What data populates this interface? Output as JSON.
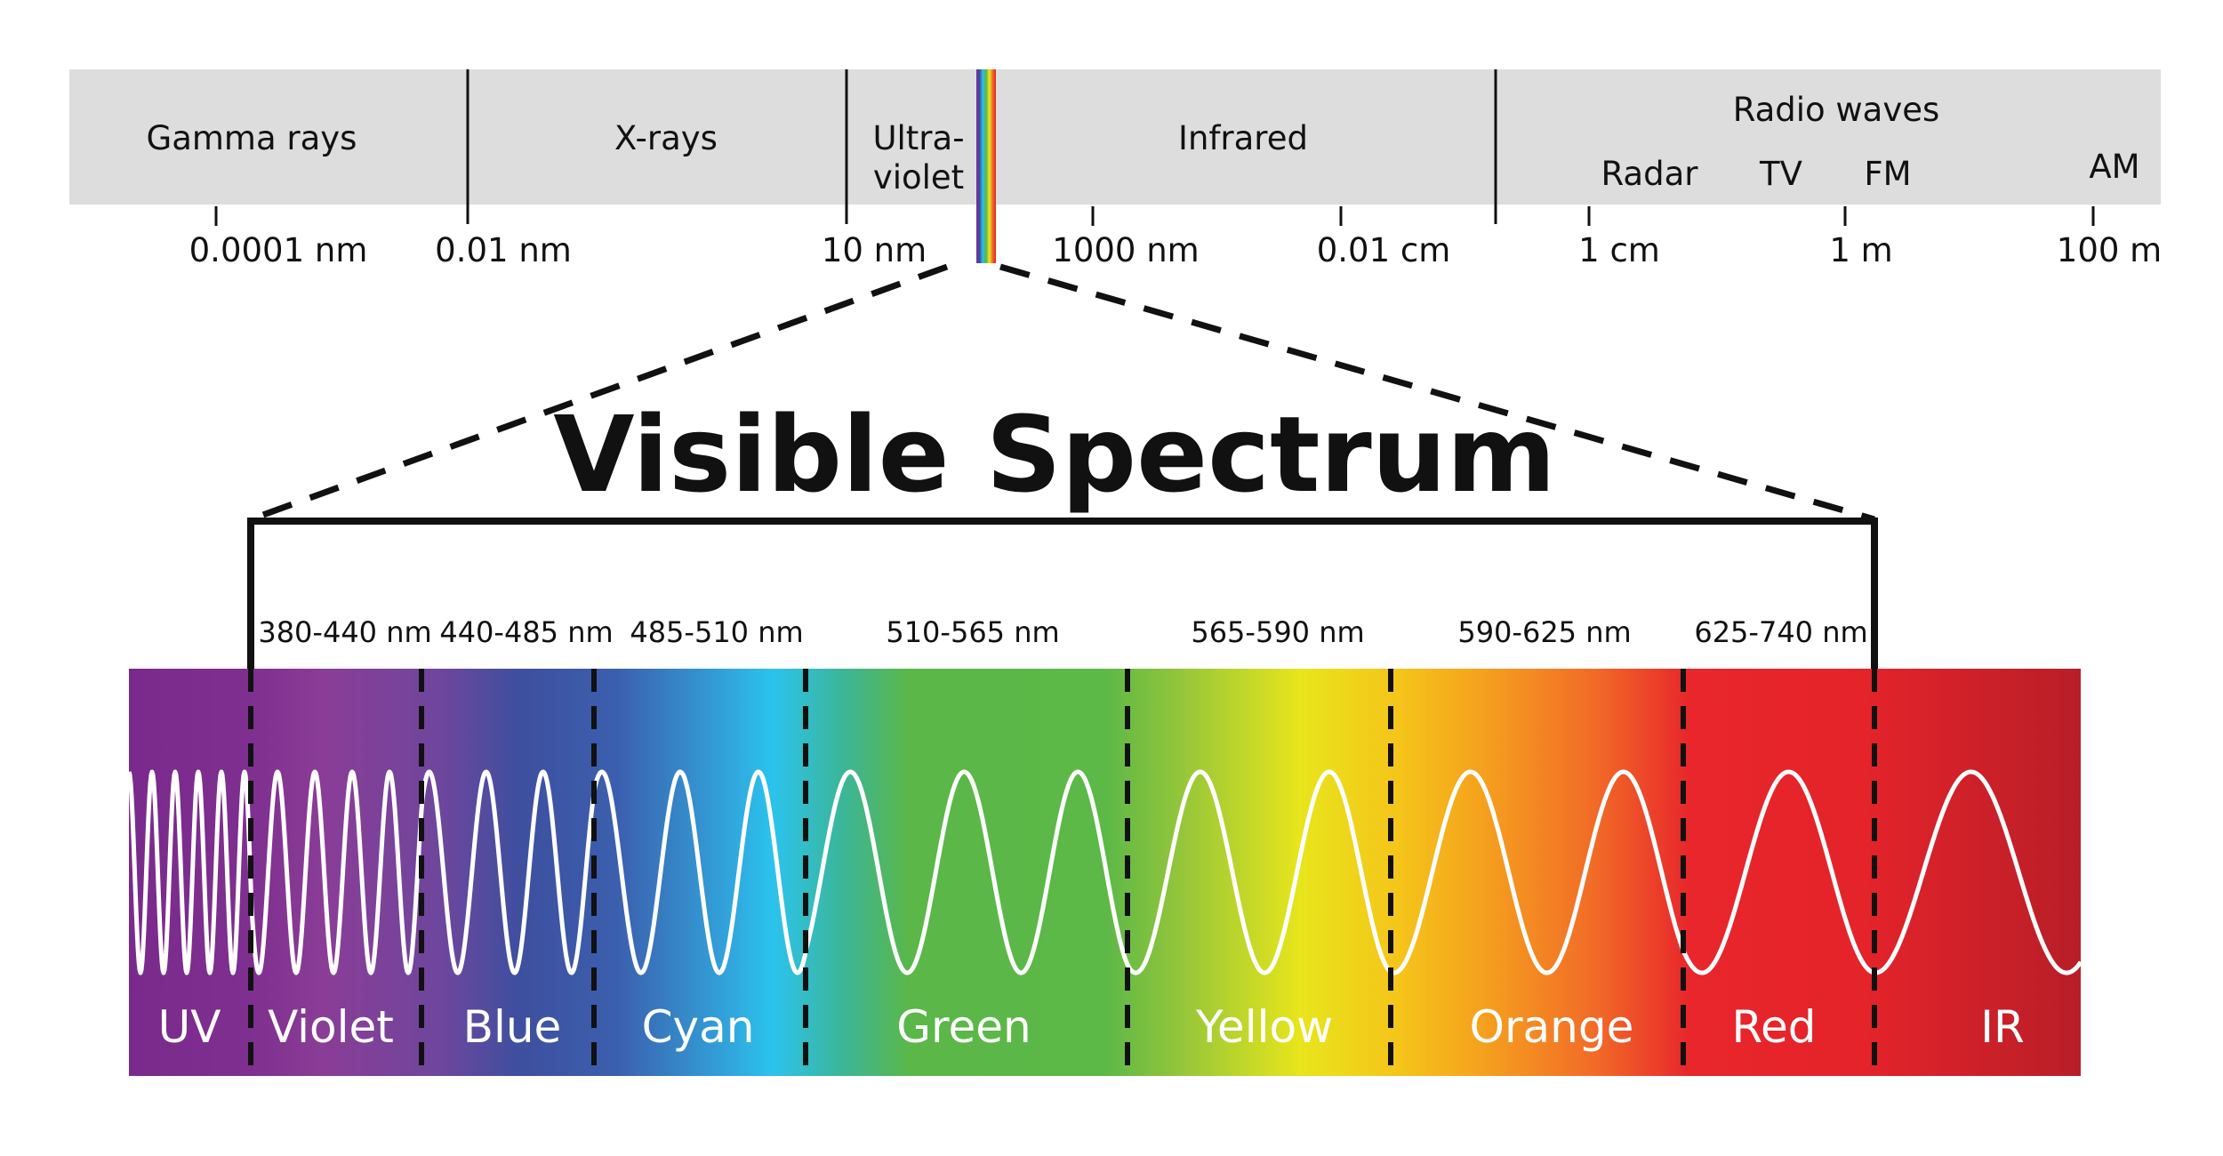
{
  "title": "Visible Spectrum",
  "em_bands": [
    "Gamma rays",
    "X-rays",
    "Ultra-\nviolet",
    "Infrared",
    "Radio waves"
  ],
  "radio_subbands": [
    "Radar",
    "TV",
    "FM",
    "AM"
  ],
  "scale_labels": [
    "0.0001 nm",
    "0.01 nm",
    "10 nm",
    "1000 nm",
    "0.01 cm",
    "1 cm",
    "1 m",
    "100 m"
  ],
  "visible_ranges": [
    "380-440 nm",
    "440-485 nm",
    "485-510 nm",
    "510-565 nm",
    "565-590 nm",
    "590-625 nm",
    "625-740 nm"
  ],
  "color_bands": [
    "UV",
    "Violet",
    "Blue",
    "Cyan",
    "Green",
    "Yellow",
    "Orange",
    "Red",
    "IR"
  ],
  "colors": {
    "em_bar": "#dddddd",
    "violet": "#7b2d8e",
    "blue": "#3b4fa0",
    "cyan": "#2bc0ea",
    "green": "#5ab748",
    "yellow": "#ece81c",
    "orange": "#f26a26",
    "red": "#e4232a",
    "ir": "#b71e26"
  }
}
